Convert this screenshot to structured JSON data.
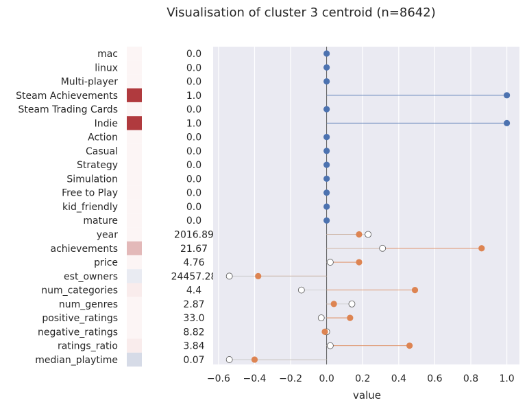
{
  "chart_data": {
    "type": "lollipop",
    "title": "Visualisation of cluster 3 centroid (n=8642)",
    "xlabel": "value",
    "xlim": [
      -0.63,
      1.07
    ],
    "xticks": [
      "−0.6",
      "−0.4",
      "−0.2",
      "0.0",
      "0.2",
      "0.4",
      "0.6",
      "0.8",
      "1.0"
    ],
    "xtick_values": [
      -0.6,
      -0.4,
      -0.2,
      0.0,
      0.2,
      0.4,
      0.6,
      0.8,
      1.0
    ],
    "grid": true,
    "colors": {
      "binary": "#4c72b0",
      "numeric": "#dd8452",
      "background": "#eaeaf2",
      "reference_fill": "#ffffff",
      "heat_high": "#b03a3e",
      "heat_mid": "#e3b9b9",
      "heat_light": "#f9ecec",
      "heat_faint": "#fcf5f5",
      "heat_cool": "#e9ebf2",
      "heat_blue": "#d6dbe7"
    },
    "rows": [
      {
        "feature": "mac",
        "raw": "0.0",
        "value": 0.0,
        "kind": "binary",
        "heat": "heat_faint"
      },
      {
        "feature": "linux",
        "raw": "0.0",
        "value": 0.0,
        "kind": "binary",
        "heat": "heat_faint"
      },
      {
        "feature": "Multi-player",
        "raw": "0.0",
        "value": 0.0,
        "kind": "binary",
        "heat": "heat_faint"
      },
      {
        "feature": "Steam Achievements",
        "raw": "1.0",
        "value": 1.0,
        "kind": "binary",
        "heat": "heat_high"
      },
      {
        "feature": "Steam Trading Cards",
        "raw": "0.0",
        "value": 0.0,
        "kind": "binary",
        "heat": "heat_faint"
      },
      {
        "feature": "Indie",
        "raw": "1.0",
        "value": 1.0,
        "kind": "binary",
        "heat": "heat_high"
      },
      {
        "feature": "Action",
        "raw": "0.0",
        "value": 0.0,
        "kind": "binary",
        "heat": "heat_faint"
      },
      {
        "feature": "Casual",
        "raw": "0.0",
        "value": 0.0,
        "kind": "binary",
        "heat": "heat_faint"
      },
      {
        "feature": "Strategy",
        "raw": "0.0",
        "value": 0.0,
        "kind": "binary",
        "heat": "heat_faint"
      },
      {
        "feature": "Simulation",
        "raw": "0.0",
        "value": 0.0,
        "kind": "binary",
        "heat": "heat_faint"
      },
      {
        "feature": "Free to Play",
        "raw": "0.0",
        "value": 0.0,
        "kind": "binary",
        "heat": "heat_faint"
      },
      {
        "feature": "kid_friendly",
        "raw": "0.0",
        "value": 0.0,
        "kind": "binary",
        "heat": "heat_faint"
      },
      {
        "feature": "mature",
        "raw": "0.0",
        "value": 0.0,
        "kind": "binary",
        "heat": "heat_faint"
      },
      {
        "feature": "year",
        "raw": "2016.89",
        "value": 0.18,
        "reference": 0.23,
        "kind": "numeric",
        "heat": "heat_faint"
      },
      {
        "feature": "achievements",
        "raw": "21.67",
        "value": 0.86,
        "reference": 0.31,
        "kind": "numeric",
        "heat": "heat_mid"
      },
      {
        "feature": "price",
        "raw": "4.76",
        "value": 0.18,
        "reference": 0.02,
        "kind": "numeric",
        "heat": "heat_faint"
      },
      {
        "feature": "est_owners",
        "raw": "24457.28",
        "value": -0.38,
        "reference": -0.54,
        "kind": "numeric",
        "heat": "heat_cool"
      },
      {
        "feature": "num_categories",
        "raw": "4.4",
        "value": 0.49,
        "reference": -0.14,
        "kind": "numeric",
        "heat": "heat_light"
      },
      {
        "feature": "num_genres",
        "raw": "2.87",
        "value": 0.04,
        "reference": 0.14,
        "kind": "numeric",
        "heat": "heat_faint"
      },
      {
        "feature": "positive_ratings",
        "raw": "33.0",
        "value": 0.13,
        "reference": -0.03,
        "kind": "numeric",
        "heat": "heat_faint"
      },
      {
        "feature": "negative_ratings",
        "raw": "8.82",
        "value": -0.01,
        "reference": 0.0,
        "kind": "numeric",
        "heat": "heat_faint"
      },
      {
        "feature": "ratings_ratio",
        "raw": "3.84",
        "value": 0.46,
        "reference": 0.02,
        "kind": "numeric",
        "heat": "heat_light"
      },
      {
        "feature": "median_playtime",
        "raw": "0.07",
        "value": -0.4,
        "reference": -0.54,
        "kind": "numeric",
        "heat": "heat_blue"
      }
    ]
  }
}
